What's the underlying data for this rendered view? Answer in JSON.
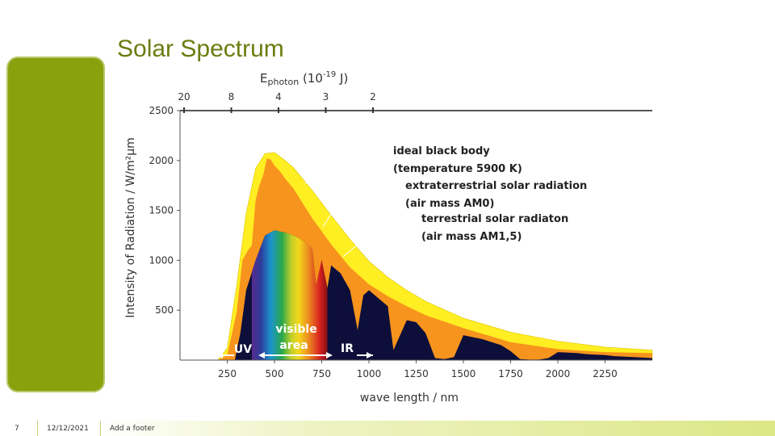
{
  "slide": {
    "title": "Solar Spectrum",
    "page_number": "7",
    "date": "12/12/2021",
    "footer": "Add a footer"
  },
  "colors": {
    "accent": "#8aa10e",
    "title": "#6b7d10",
    "black_body": "#ffee22",
    "extraterrestrial": "#f7941d",
    "terrestrial": "#0d0f3a",
    "axis": "#555555"
  },
  "chart_data": {
    "type": "area",
    "title": "",
    "xlabel": "wave length / nm",
    "ylabel": "Intensity of Radiation  /  W/m²µm",
    "xlim": [
      0,
      2500
    ],
    "ylim": [
      0,
      2500
    ],
    "x_ticks": [
      250,
      500,
      750,
      1000,
      1250,
      1500,
      1750,
      2000,
      2250
    ],
    "y_ticks": [
      500,
      1000,
      1500,
      2000,
      2500
    ],
    "top_axis": {
      "label_main": "E",
      "label_sub": "photon",
      "label_rest": " (10",
      "label_exp": "-19",
      "label_end": " J)",
      "ticks": [
        {
          "label": "20",
          "wavelength_nm": 0
        },
        {
          "label": "8",
          "wavelength_nm": 250
        },
        {
          "label": "4",
          "wavelength_nm": 500
        },
        {
          "label": "3",
          "wavelength_nm": 750
        },
        {
          "label": "2",
          "wavelength_nm": 1000
        }
      ]
    },
    "series": [
      {
        "name": "ideal black body (temperature 5900 K)",
        "x": [
          200,
          250,
          300,
          350,
          400,
          450,
          500,
          550,
          600,
          700,
          800,
          900,
          1000,
          1100,
          1200,
          1300,
          1500,
          1750,
          2000,
          2250,
          2500
        ],
        "values": [
          0,
          120,
          750,
          1470,
          1920,
          2070,
          2080,
          2010,
          1930,
          1700,
          1450,
          1210,
          990,
          830,
          700,
          590,
          420,
          280,
          190,
          130,
          100
        ]
      },
      {
        "name": "extraterrestrial solar radiation (air mass AM0)",
        "x": [
          200,
          250,
          300,
          330,
          360,
          380,
          400,
          420,
          440,
          460,
          480,
          500,
          530,
          560,
          600,
          650,
          700,
          800,
          900,
          1000,
          1100,
          1200,
          1300,
          1500,
          1750,
          2000,
          2250,
          2500
        ],
        "values": [
          0,
          50,
          480,
          1000,
          1100,
          1150,
          1600,
          1750,
          1850,
          2020,
          2010,
          1950,
          1890,
          1810,
          1720,
          1570,
          1420,
          1160,
          930,
          760,
          640,
          540,
          450,
          320,
          180,
          110,
          80,
          70
        ]
      },
      {
        "name": "terrestrial solar radiaton (air mass AM1,5)",
        "x": [
          290,
          320,
          350,
          380,
          400,
          450,
          500,
          550,
          600,
          650,
          700,
          720,
          750,
          780,
          800,
          850,
          900,
          940,
          970,
          1000,
          1050,
          1100,
          1130,
          1200,
          1250,
          1300,
          1350,
          1400,
          1450,
          1500,
          1550,
          1600,
          1700,
          1750,
          1800,
          1850,
          1900,
          1950,
          2000,
          2100,
          2150,
          2200,
          2250,
          2300,
          2400,
          2500
        ],
        "values": [
          0,
          280,
          700,
          880,
          1000,
          1250,
          1300,
          1280,
          1250,
          1200,
          1120,
          750,
          1000,
          720,
          950,
          870,
          700,
          300,
          650,
          700,
          620,
          540,
          100,
          400,
          380,
          270,
          20,
          10,
          30,
          250,
          230,
          210,
          150,
          90,
          10,
          5,
          5,
          20,
          80,
          70,
          60,
          55,
          50,
          40,
          30,
          20
        ]
      }
    ],
    "legend": [
      {
        "line1": "ideal black body",
        "line2": "(temperature 5900 K)"
      },
      {
        "line1": "extraterrestrial solar radiation",
        "line2": "(air mass AM0)"
      },
      {
        "line1": "terrestrial solar radiaton",
        "line2": "(air mass AM1,5)"
      }
    ],
    "annotations": {
      "uv": "UV",
      "visible_line1": "visible",
      "visible_line2": "area",
      "ir": "IR"
    },
    "grid": false,
    "legend_position": "top-right"
  }
}
